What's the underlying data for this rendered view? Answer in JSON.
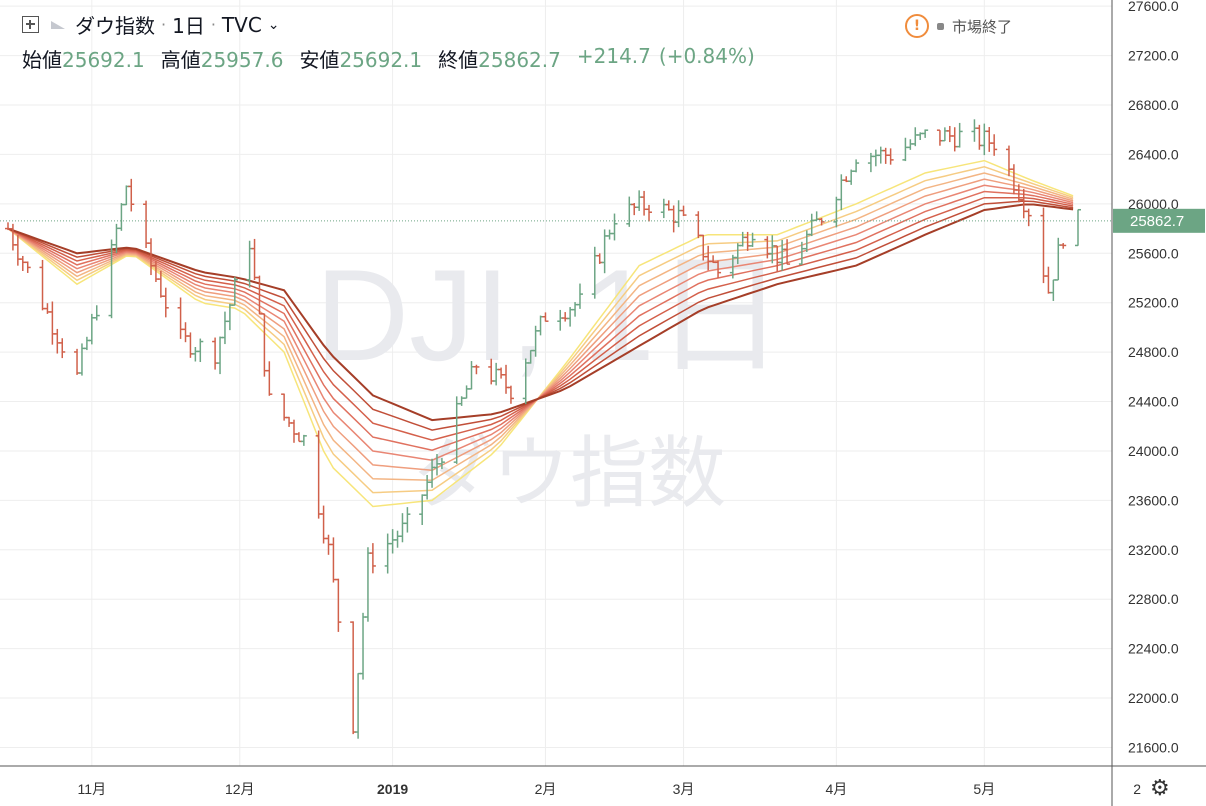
{
  "header": {
    "symbol_name": "ダウ指数",
    "interval": "1日",
    "exchange": "TVC",
    "open_label": "始値",
    "open_value": "25692.1",
    "high_label": "高値",
    "high_value": "25957.6",
    "low_label": "安値",
    "low_value": "25692.1",
    "close_label": "終値",
    "close_value": "25862.7",
    "change": "+214.7",
    "change_pct": "(+0.84%)",
    "market_status": "市場終了",
    "warning_glyph": "!"
  },
  "watermark": {
    "symbol": "DJI, 1日",
    "name": "ダウ指数"
  },
  "colors": {
    "up": "#6ca584",
    "down": "#d0604a",
    "grid": "#eeeeee",
    "ribbon": [
      "#f7e57a",
      "#f6cc83",
      "#f3b584",
      "#ef9e7e",
      "#e98674",
      "#e0715f",
      "#d4604b",
      "#c14f39",
      "#a53e28"
    ]
  },
  "chart_data": {
    "type": "line",
    "title": "",
    "series_type": "ohlc-bars with moving-average ribbon",
    "x_tick_labels": [
      "11月",
      "12月",
      "2019",
      "2月",
      "3月",
      "4月",
      "5月",
      "2"
    ],
    "y_tick_labels": [
      "27600.0",
      "27200.0",
      "26800.0",
      "26400.0",
      "26000.0",
      "25600.0",
      "25200.0",
      "24800.0",
      "24400.0",
      "24000.0",
      "23600.0",
      "23200.0",
      "22800.0",
      "22400.0",
      "22000.0",
      "21600.0"
    ],
    "ylim": [
      21450,
      27650
    ],
    "last_price_label": "25862.7",
    "last_price": 25862.7,
    "price_path": [
      [
        "10-15",
        25800
      ],
      [
        "10-22",
        25200
      ],
      [
        "10-29",
        24600
      ],
      [
        "11-05",
        25600
      ],
      [
        "11-08",
        26150
      ],
      [
        "11-12",
        25600
      ],
      [
        "11-19",
        24900
      ],
      [
        "11-26",
        24800
      ],
      [
        "12-03",
        25700
      ],
      [
        "12-07",
        24400
      ],
      [
        "12-14",
        24100
      ],
      [
        "12-19",
        23200
      ],
      [
        "12-24",
        21800
      ],
      [
        "12-27",
        23100
      ],
      [
        "01-04",
        23400
      ],
      [
        "01-11",
        23990
      ],
      [
        "01-18",
        24700
      ],
      [
        "01-25",
        24500
      ],
      [
        "02-01",
        25100
      ],
      [
        "02-08",
        25200
      ],
      [
        "02-15",
        25900
      ],
      [
        "02-22",
        26000
      ],
      [
        "02-28",
        25900
      ],
      [
        "03-08",
        25450
      ],
      [
        "03-15",
        25800
      ],
      [
        "03-22",
        25500
      ],
      [
        "03-29",
        25900
      ],
      [
        "04-05",
        26400
      ],
      [
        "04-12",
        26400
      ],
      [
        "04-19",
        26550
      ],
      [
        "04-26",
        26550
      ],
      [
        "05-03",
        26500
      ],
      [
        "05-10",
        25950
      ],
      [
        "05-14",
        25300
      ],
      [
        "05-17",
        25750
      ],
      [
        "05-20",
        25862.7
      ]
    ],
    "ribbon": {
      "count": 9,
      "fast_path": [
        [
          "10-15",
          25800
        ],
        [
          "10-29",
          25350
        ],
        [
          "11-09",
          25600
        ],
        [
          "11-23",
          25200
        ],
        [
          "12-01",
          25150
        ],
        [
          "12-10",
          24800
        ],
        [
          "12-19",
          23900
        ],
        [
          "12-28",
          23550
        ],
        [
          "01-09",
          23600
        ],
        [
          "01-22",
          24000
        ],
        [
          "02-05",
          24700
        ],
        [
          "02-20",
          25500
        ],
        [
          "03-05",
          25750
        ],
        [
          "03-20",
          25750
        ],
        [
          "04-05",
          26000
        ],
        [
          "04-19",
          26250
        ],
        [
          "05-01",
          26350
        ],
        [
          "05-10",
          26200
        ],
        [
          "05-20",
          26050
        ]
      ],
      "slow_path": [
        [
          "10-15",
          25800
        ],
        [
          "10-29",
          25600
        ],
        [
          "11-09",
          25650
        ],
        [
          "11-23",
          25450
        ],
        [
          "12-01",
          25400
        ],
        [
          "12-10",
          25300
        ],
        [
          "12-19",
          24800
        ],
        [
          "12-28",
          24450
        ],
        [
          "01-09",
          24250
        ],
        [
          "01-22",
          24300
        ],
        [
          "02-05",
          24500
        ],
        [
          "02-20",
          24850
        ],
        [
          "03-05",
          25150
        ],
        [
          "03-20",
          25350
        ],
        [
          "04-05",
          25500
        ],
        [
          "04-19",
          25750
        ],
        [
          "05-01",
          25950
        ],
        [
          "05-10",
          26000
        ],
        [
          "05-20",
          25950
        ]
      ]
    }
  }
}
